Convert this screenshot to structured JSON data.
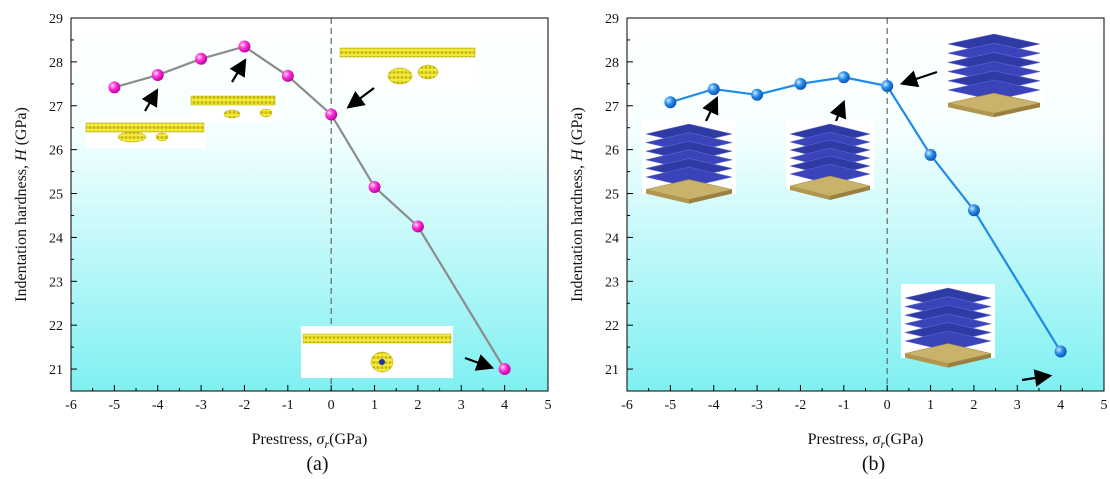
{
  "chart_data": [
    {
      "type": "line",
      "panel_label": "(a)",
      "xlabel": {
        "prefix": "Prestress, ",
        "symbol": "σ",
        "sub": "r",
        "suffix": "(GPa)"
      },
      "ylabel": {
        "prefix": "Indentation hardness, ",
        "symbol": "H",
        "suffix": " (GPa)"
      },
      "xlim": [
        -6,
        5
      ],
      "ylim": [
        20.5,
        29
      ],
      "xticks": [
        -6,
        -5,
        -4,
        -3,
        -2,
        -1,
        0,
        1,
        2,
        3,
        4,
        5
      ],
      "yticks": [
        21,
        22,
        23,
        24,
        25,
        26,
        27,
        28,
        29
      ],
      "grid": false,
      "dashed_reference_x": 0,
      "line_color": "#8c8c8c",
      "marker_color": "#ff1fd2",
      "background_gradient": [
        "#ffffff",
        "#7ff0f2"
      ],
      "series": [
        {
          "x": [
            -5,
            -4,
            -3,
            -2,
            -1,
            0,
            1,
            2,
            4
          ],
          "y": [
            27.42,
            27.7,
            28.07,
            28.35,
            27.68,
            26.8,
            25.15,
            24.25,
            21.0
          ]
        }
      ]
    },
    {
      "type": "line",
      "panel_label": "(b)",
      "xlabel": {
        "prefix": "Prestress, ",
        "symbol": "σ",
        "sub": "r",
        "suffix": "(GPa)"
      },
      "ylabel": {
        "prefix": "Indentation hardness, ",
        "symbol": "H",
        "suffix": " (GPa)"
      },
      "xlim": [
        -6,
        5
      ],
      "ylim": [
        20.5,
        29
      ],
      "xticks": [
        -6,
        -5,
        -4,
        -3,
        -2,
        -1,
        0,
        1,
        2,
        3,
        4,
        5
      ],
      "yticks": [
        21,
        22,
        23,
        24,
        25,
        26,
        27,
        28,
        29
      ],
      "grid": false,
      "dashed_reference_x": 0,
      "line_color": "#1e8be8",
      "marker_color": "#1e8be8",
      "background_gradient": [
        "#ffffff",
        "#7ff0f2"
      ],
      "series": [
        {
          "x": [
            -5,
            -4,
            -3,
            -2,
            -1,
            0,
            1,
            2,
            4
          ],
          "y": [
            27.08,
            27.38,
            27.25,
            27.5,
            27.65,
            27.45,
            25.88,
            24.62,
            21.4
          ]
        }
      ]
    }
  ]
}
